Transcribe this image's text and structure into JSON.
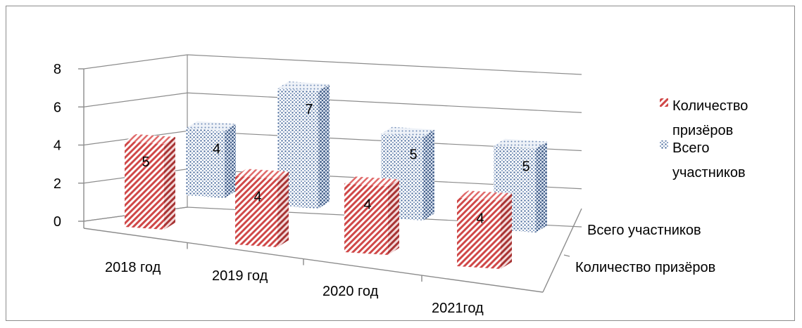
{
  "chart_data": {
    "type": "bar",
    "title": "",
    "xlabel": "",
    "ylabel": "",
    "ylim": [
      0,
      8
    ],
    "yticks": [
      0,
      2,
      4,
      6,
      8
    ],
    "grid": true,
    "legend_position": "right",
    "categories": [
      "2018 год",
      "2019 год",
      "2020 год",
      "2021год"
    ],
    "series": [
      {
        "name": "Количество призёров",
        "values": [
          5,
          4,
          4,
          4
        ],
        "color": "#c0504d",
        "pattern": "diagonal-stripes"
      },
      {
        "name": "Всего участников",
        "values": [
          4,
          7,
          5,
          5
        ],
        "color": "#4f6f9f",
        "pattern": "dots"
      }
    ],
    "depth_axis_labels": [
      "Всего участников",
      "Количество призёров"
    ],
    "legend": [
      {
        "lines": [
          "Количество",
          "призёров"
        ]
      },
      {
        "lines": [
          "Всего",
          "участников"
        ]
      }
    ]
  }
}
